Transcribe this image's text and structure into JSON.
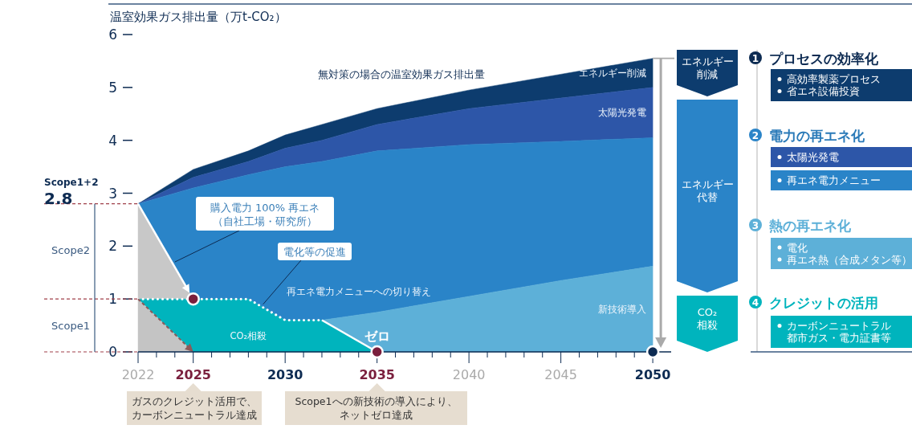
{
  "chart_data": {
    "type": "area",
    "ylabel": "温室効果ガス排出量（万t-CO₂）",
    "x": [
      2022,
      2025,
      2028,
      2030,
      2032,
      2035,
      2040,
      2045,
      2050
    ],
    "xlim": [
      2022,
      2051
    ],
    "ylim": [
      0,
      6
    ],
    "yticks": [
      0,
      1,
      2,
      3,
      4,
      5,
      6
    ],
    "xticks": [
      {
        "value": 2022,
        "label": "2022"
      },
      {
        "value": 2023,
        "label": null
      },
      {
        "value": 2024,
        "label": null
      },
      {
        "value": 2025,
        "label": "2025"
      },
      {
        "value": 2026,
        "label": null
      },
      {
        "value": 2027,
        "label": null
      },
      {
        "value": 2028,
        "label": null
      },
      {
        "value": 2029,
        "label": null
      },
      {
        "value": 2030,
        "label": "2030"
      },
      {
        "value": 2031,
        "label": null
      },
      {
        "value": 2032,
        "label": null
      },
      {
        "value": 2033,
        "label": null
      },
      {
        "value": 2034,
        "label": null
      },
      {
        "value": 2035,
        "label": "2035"
      },
      {
        "value": 2036,
        "label": null
      },
      {
        "value": 2037,
        "label": null
      },
      {
        "value": 2038,
        "label": null
      },
      {
        "value": 2039,
        "label": null
      },
      {
        "value": 2040,
        "label": "2040"
      },
      {
        "value": 2041,
        "label": null
      },
      {
        "value": 2042,
        "label": null
      },
      {
        "value": 2043,
        "label": null
      },
      {
        "value": 2044,
        "label": null
      },
      {
        "value": 2045,
        "label": "2045"
      },
      {
        "value": 2046,
        "label": null
      },
      {
        "value": 2047,
        "label": null
      },
      {
        "value": 2048,
        "label": null
      },
      {
        "value": 2049,
        "label": null
      },
      {
        "value": 2050,
        "label": "2050"
      }
    ],
    "series": [
      {
        "name": "エネルギー削減",
        "color": "#0d3c6e",
        "values": [
          2.8,
          3.45,
          3.8,
          4.1,
          4.3,
          4.6,
          4.95,
          5.25,
          5.55
        ]
      },
      {
        "name": "太陽光発電",
        "color": "#2d56a8",
        "values": [
          2.8,
          3.3,
          3.6,
          3.85,
          4.0,
          4.3,
          4.6,
          4.8,
          5.0
        ]
      },
      {
        "name": "再エネ電力メニューへの切り替え",
        "color": "#2a84c8",
        "values": [
          2.8,
          3.1,
          3.35,
          3.5,
          3.6,
          3.8,
          3.92,
          3.98,
          4.05
        ]
      },
      {
        "name": "新技術導入",
        "color": "#5db0d8",
        "x": [
          2032,
          2035,
          2040,
          2045,
          2050
        ],
        "values": [
          0.6,
          0.75,
          1.05,
          1.35,
          1.62
        ]
      },
      {
        "color": "#c8c8c8",
        "x": [
          2022,
          2025
        ],
        "values": [
          2.8,
          1.0
        ]
      },
      {
        "name": "CO₂相殺",
        "color": "#00b4bd",
        "x": [
          2022,
          2025,
          2028,
          2030,
          2032,
          2035
        ],
        "values": [
          1.0,
          1.0,
          1.0,
          0.6,
          0.6,
          0
        ]
      },
      {
        "color": "#c4c4c4",
        "x": [
          2022,
          2025
        ],
        "values": [
          1.0,
          0
        ]
      },
      {
        "type": "scatter",
        "x": [
          2025,
          2035,
          2050
        ],
        "values": [
          1,
          0,
          0
        ],
        "colors": [
          "#7a1f3d",
          "#7a1f3d",
          "#0d2b52"
        ]
      }
    ],
    "annotations": [
      "無対策の場合の温室効果ガス排出量",
      {
        "text": "購入電力 100% 再エネ（自社工場・研究所）",
        "x": 2024,
        "y": 1.7
      },
      {
        "text": "電化等の促進",
        "x": 2028.8,
        "y": 0.9
      },
      {
        "text": "ゼロ",
        "x": 2035,
        "y": 0
      },
      "ガスのクレジット活用で、カーボンニュートラル達成",
      "Scope1への新技術の導入により、ネットゼロ達成",
      "Scope1+2",
      "2.8",
      "Scope2",
      "Scope1",
      "エネルギー削減",
      "エネルギー代替",
      "CO₂相殺",
      "1",
      "プロセスの効率化",
      "高効率製薬プロセス",
      "省エネ設備投資",
      "2",
      "電力の再エネ化",
      "太陽光発電",
      "再エネ電力メニュー",
      "3",
      "熱の再エネ化",
      "電化",
      "再エネ熱（合成メタン等）",
      "4",
      "クレジットの活用",
      "カーボンニュートラル都市ガス・電力証書等"
    ]
  }
}
